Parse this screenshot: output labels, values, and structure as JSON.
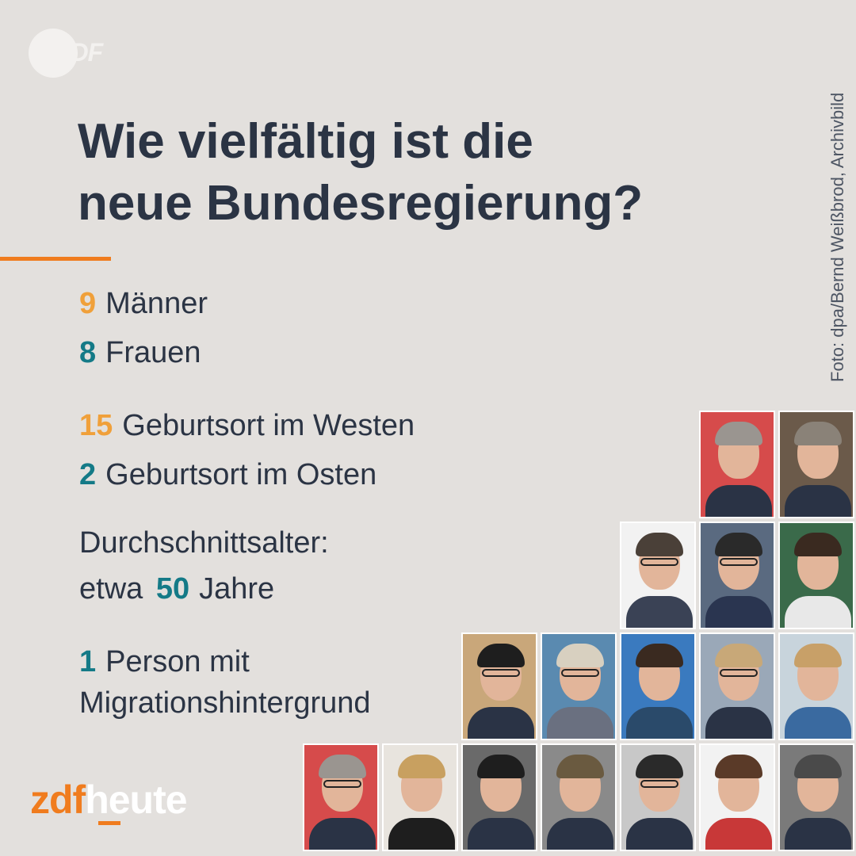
{
  "logo": {
    "text": "ZDF"
  },
  "headline": {
    "line1": "Wie vielfältig ist die",
    "line2": "neue Bundesregierung?"
  },
  "credit": "Foto: dpa/Bernd Weißbrod, Archivbild",
  "stats": {
    "men": {
      "number": "9",
      "label": "Männer"
    },
    "women": {
      "number": "8",
      "label": "Frauen"
    },
    "west": {
      "number": "15",
      "label": "Geburtsort im Westen"
    },
    "east": {
      "number": "2",
      "label": "Geburtsort im Osten"
    },
    "age": {
      "line1": "Durchschnittsalter:",
      "prefix": "etwa",
      "number": "50",
      "suffix": "Jahre"
    },
    "migration": {
      "number": "1",
      "line1": "Person mit",
      "line2": "Migrationshintergrund"
    }
  },
  "brand": {
    "part1": "zdf",
    "part2": "heute"
  },
  "colors": {
    "background": "#e3e0dd",
    "orange": "#f0a03a",
    "teal": "#147a87",
    "accent": "#f07c1e",
    "text": "#2b3444"
  },
  "photos": [
    {
      "bg": "#d64b4b",
      "hair": "#9a9590",
      "suit": "#2a3345",
      "glasses": false
    },
    {
      "bg": "#6b5a4a",
      "hair": "#8a8278",
      "suit": "#2a3345",
      "glasses": false
    },
    {
      "bg": "#f2f2f2",
      "hair": "#4a4038",
      "suit": "#3a4255",
      "glasses": true
    },
    {
      "bg": "#5a6a80",
      "hair": "#2a2a2a",
      "suit": "#2a3550",
      "glasses": true
    },
    {
      "bg": "#3a6a4a",
      "hair": "#3a2a20",
      "suit": "#e8e8e8",
      "glasses": false
    },
    {
      "bg": "#c9a77a",
      "hair": "#1e1e1e",
      "suit": "#2a3345",
      "glasses": true
    },
    {
      "bg": "#5a8ab0",
      "hair": "#d8d0c0",
      "suit": "#6a7080",
      "glasses": true
    },
    {
      "bg": "#3a7abf",
      "hair": "#3a2a20",
      "suit": "#2a4a6a",
      "glasses": false
    },
    {
      "bg": "#9aa8b8",
      "hair": "#c8a878",
      "suit": "#2a3345",
      "glasses": true
    },
    {
      "bg": "#c8d4dc",
      "hair": "#c8a068",
      "suit": "#3a6aa0",
      "glasses": false
    },
    {
      "bg": "#d64b4b",
      "hair": "#9a9590",
      "suit": "#2a3345",
      "glasses": true
    },
    {
      "bg": "#e8e4de",
      "hair": "#c8a060",
      "suit": "#1e1e1e",
      "glasses": false
    },
    {
      "bg": "#6a6a6a",
      "hair": "#1e1e1e",
      "suit": "#2a3345",
      "glasses": false
    },
    {
      "bg": "#8a8a8a",
      "hair": "#6a5a40",
      "suit": "#2a3345",
      "glasses": false
    },
    {
      "bg": "#c8c8c8",
      "hair": "#2a2a2a",
      "suit": "#2a3345",
      "glasses": true
    },
    {
      "bg": "#f2f2f2",
      "hair": "#5a3a28",
      "suit": "#c83838",
      "glasses": false
    },
    {
      "bg": "#7a7a7a",
      "hair": "#4a4a4a",
      "suit": "#2a3345",
      "glasses": false
    }
  ]
}
